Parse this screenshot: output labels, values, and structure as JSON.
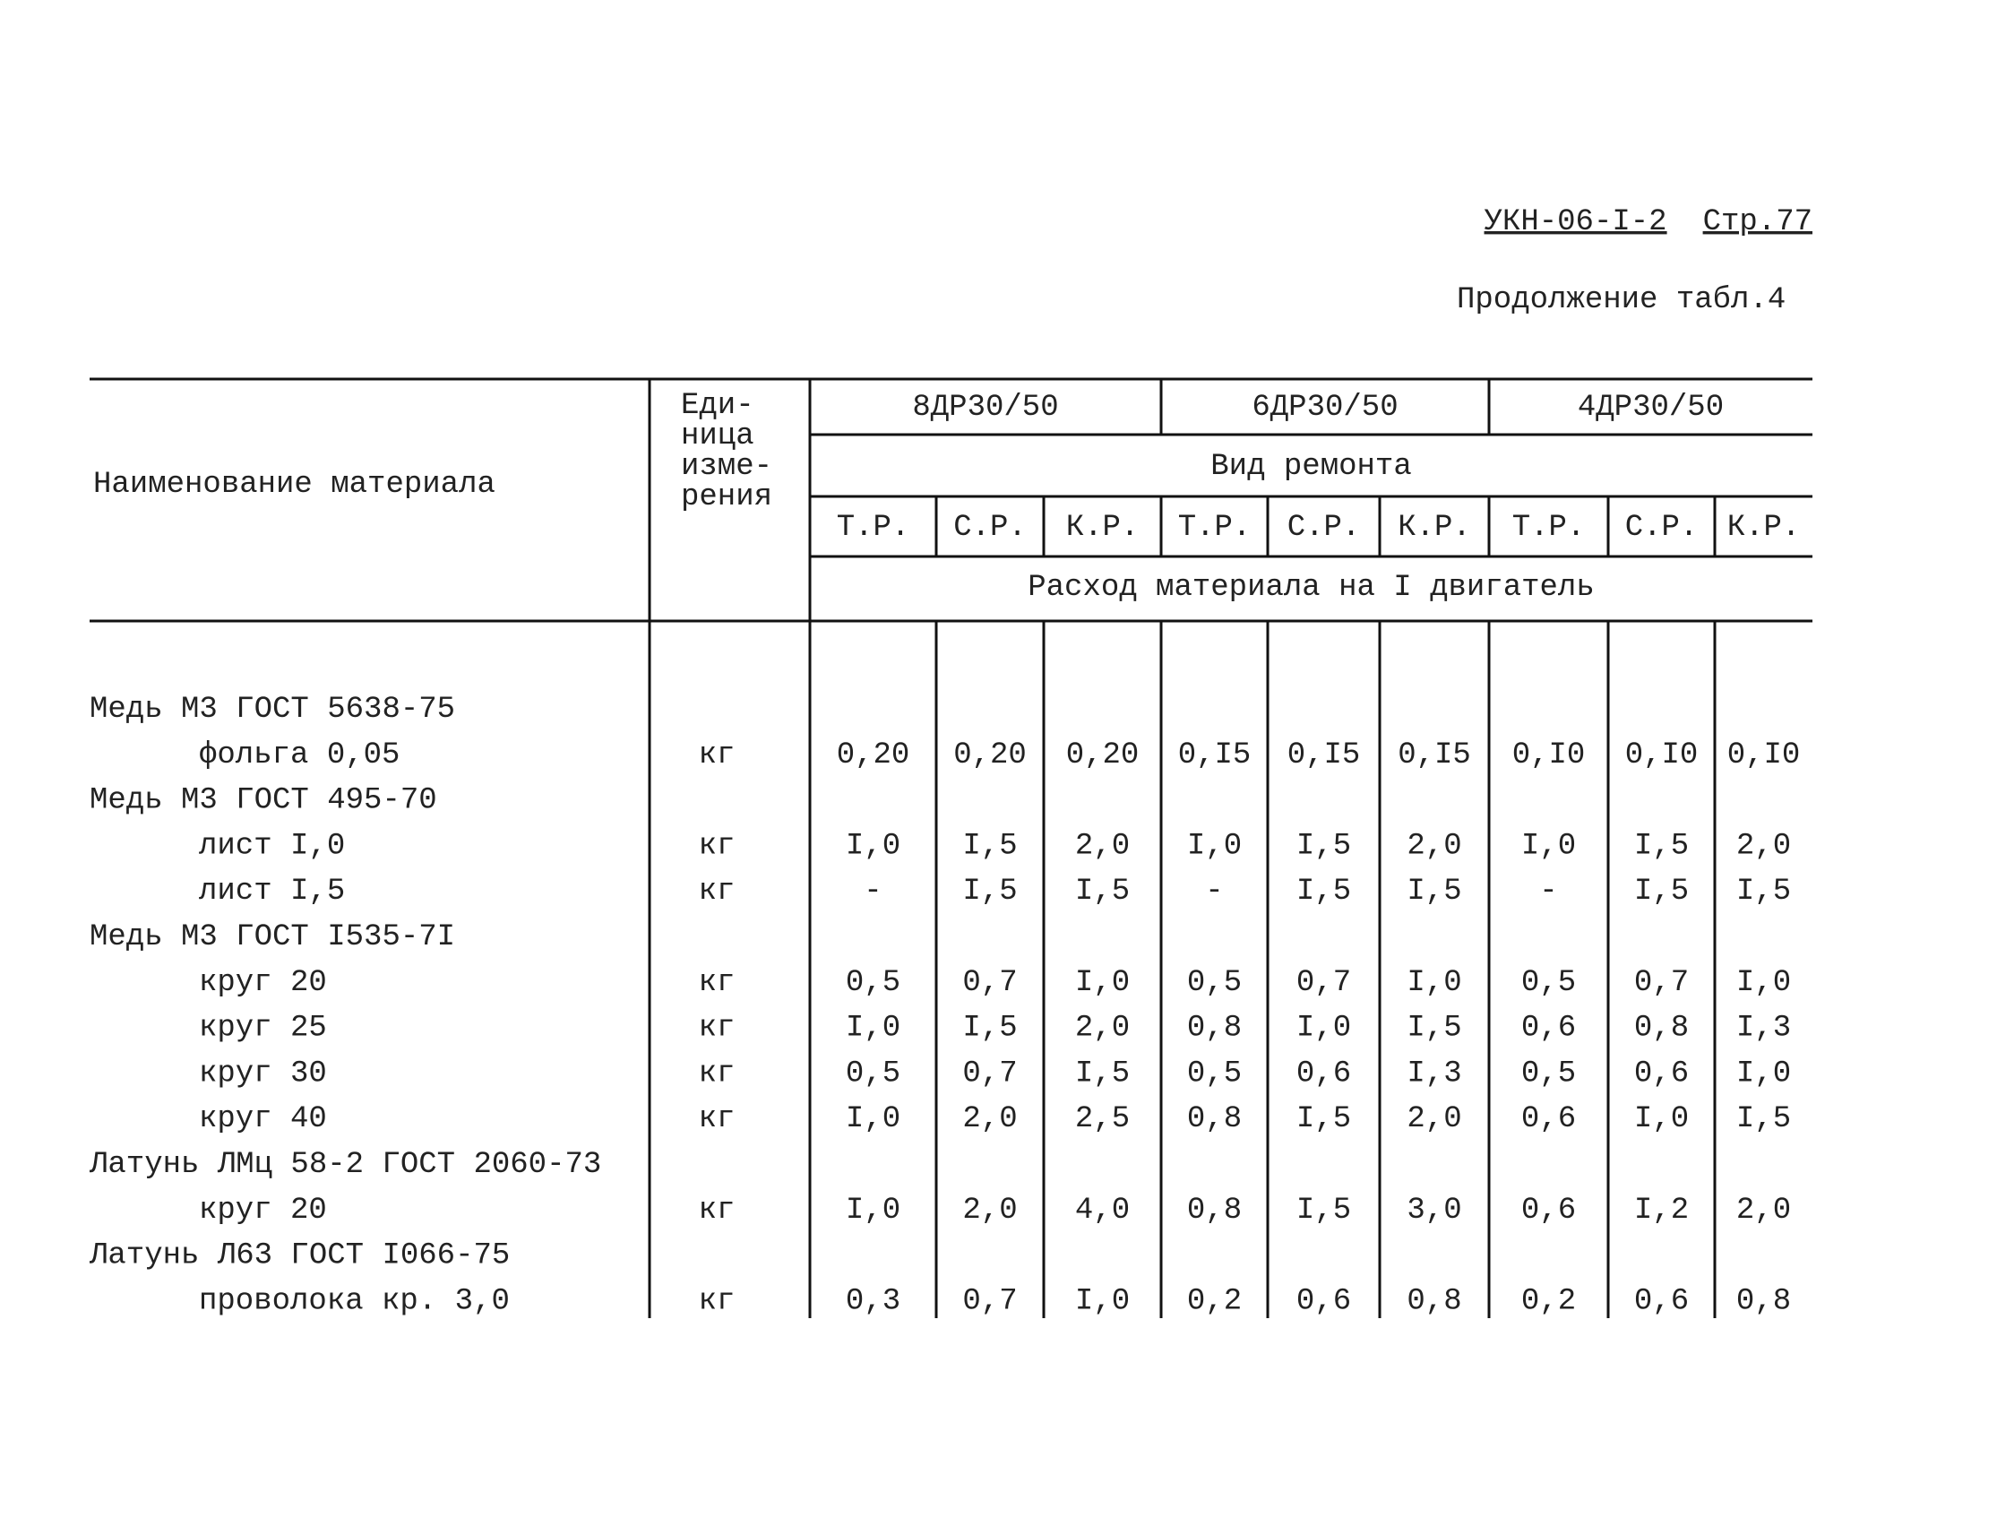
{
  "header": {
    "code": "УКН-06-I-2",
    "page": "Стр.77",
    "continuation": "Продолжение табл.4"
  },
  "table": {
    "name_header": "Наименование материала",
    "unit_header": [
      "Еди-",
      "ница",
      "изме-",
      "рения"
    ],
    "engines": [
      "8ДР30/50",
      "6ДР30/50",
      "4ДР30/50"
    ],
    "repair_header": "Вид ремонта",
    "repair_types": [
      "Т.Р.",
      "С.Р.",
      "К.Р."
    ],
    "consumption_header": "Расход материала на I двигатель",
    "materials": [
      {
        "name": "Медь М3 ГОСТ 5638-75",
        "items": [
          {
            "name": "фольга 0,05",
            "unit": "кг",
            "values": [
              "0,20",
              "0,20",
              "0,20",
              "0,I5",
              "0,I5",
              "0,I5",
              "0,I0",
              "0,I0",
              "0,I0"
            ]
          }
        ]
      },
      {
        "name": "Медь М3 ГОСТ 495-70",
        "items": [
          {
            "name": "лист I,0",
            "unit": "кг",
            "values": [
              "I,0",
              "I,5",
              "2,0",
              "I,0",
              "I,5",
              "2,0",
              "I,0",
              "I,5",
              "2,0"
            ]
          },
          {
            "name": "лист I,5",
            "unit": "кг",
            "values": [
              "-",
              "I,5",
              "I,5",
              "-",
              "I,5",
              "I,5",
              "-",
              "I,5",
              "I,5"
            ]
          }
        ]
      },
      {
        "name": "Медь М3 ГОСТ I535-7I",
        "items": [
          {
            "name": "круг 20",
            "unit": "кг",
            "values": [
              "0,5",
              "0,7",
              "I,0",
              "0,5",
              "0,7",
              "I,0",
              "0,5",
              "0,7",
              "I,0"
            ]
          },
          {
            "name": "круг 25",
            "unit": "кг",
            "values": [
              "I,0",
              "I,5",
              "2,0",
              "0,8",
              "I,0",
              "I,5",
              "0,6",
              "0,8",
              "I,3"
            ]
          },
          {
            "name": "круг 30",
            "unit": "кг",
            "values": [
              "0,5",
              "0,7",
              "I,5",
              "0,5",
              "0,6",
              "I,3",
              "0,5",
              "0,6",
              "I,0"
            ]
          },
          {
            "name": "круг 40",
            "unit": "кг",
            "values": [
              "I,0",
              "2,0",
              "2,5",
              "0,8",
              "I,5",
              "2,0",
              "0,6",
              "I,0",
              "I,5"
            ]
          }
        ]
      },
      {
        "name": "Латунь ЛМц 58-2 ГОСТ 2060-73",
        "items": [
          {
            "name": "круг 20",
            "unit": "кг",
            "values": [
              "I,0",
              "2,0",
              "4,0",
              "0,8",
              "I,5",
              "3,0",
              "0,6",
              "I,2",
              "2,0"
            ]
          }
        ]
      },
      {
        "name": "Латунь Л63 ГОСТ I066-75",
        "items": [
          {
            "name": "проволока кр. 3,0",
            "unit": "кг",
            "values": [
              "0,3",
              "0,7",
              "I,0",
              "0,2",
              "0,6",
              "0,8",
              "0,2",
              "0,6",
              "0,8"
            ]
          }
        ]
      }
    ]
  }
}
